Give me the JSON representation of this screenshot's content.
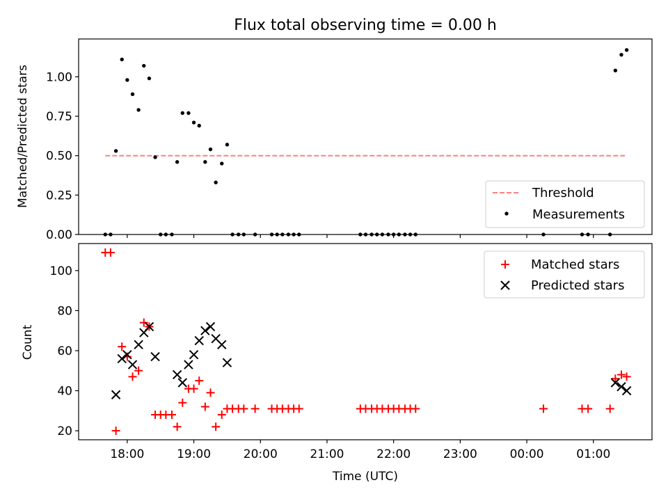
{
  "figure": {
    "title": "Flux total observing time = 0.00 h"
  },
  "chart_data": [
    {
      "type": "scatter",
      "panel": "top",
      "title": "Flux total observing time = 0.00 h",
      "xlabel": "",
      "ylabel": "Matched/Predicted stars",
      "x_unit": "hours since 17:00 UTC (ticks printed as clock time)",
      "xlim": [
        0.27,
        8.88
      ],
      "ylim": [
        0.0,
        1.24
      ],
      "xticks": [
        1,
        2,
        3,
        4,
        5,
        6,
        7,
        8
      ],
      "xtick_labels_shown": false,
      "yticks": [
        0.0,
        0.25,
        0.5,
        0.75,
        1.0
      ],
      "ytick_labels": [
        "0.00",
        "0.25",
        "0.50",
        "0.75",
        "1.00"
      ],
      "grid": false,
      "legend_position": "lower right",
      "threshold": {
        "name": "Threshold",
        "color": "#ff7f7f",
        "style": "dashed",
        "x_range": [
          0.67,
          8.5
        ],
        "y": 0.5
      },
      "series": [
        {
          "name": "Measurements",
          "color": "#000000",
          "marker": "dot",
          "points": [
            [
              0.67,
              0.0
            ],
            [
              0.75,
              0.0
            ],
            [
              0.83,
              0.53
            ],
            [
              0.92,
              1.11
            ],
            [
              1.0,
              0.98
            ],
            [
              1.08,
              0.89
            ],
            [
              1.17,
              0.79
            ],
            [
              1.25,
              1.07
            ],
            [
              1.33,
              0.99
            ],
            [
              1.42,
              0.49
            ],
            [
              1.5,
              0.0
            ],
            [
              1.58,
              0.0
            ],
            [
              1.67,
              0.0
            ],
            [
              1.75,
              0.46
            ],
            [
              1.83,
              0.77
            ],
            [
              1.92,
              0.77
            ],
            [
              2.0,
              0.71
            ],
            [
              2.08,
              0.69
            ],
            [
              2.17,
              0.46
            ],
            [
              2.25,
              0.54
            ],
            [
              2.33,
              0.33
            ],
            [
              2.42,
              0.45
            ],
            [
              2.5,
              0.57
            ],
            [
              2.58,
              0.0
            ],
            [
              2.67,
              0.0
            ],
            [
              2.75,
              0.0
            ],
            [
              2.92,
              0.0
            ],
            [
              3.17,
              0.0
            ],
            [
              3.25,
              0.0
            ],
            [
              3.33,
              0.0
            ],
            [
              3.42,
              0.0
            ],
            [
              3.5,
              0.0
            ],
            [
              3.58,
              0.0
            ],
            [
              4.5,
              0.0
            ],
            [
              4.58,
              0.0
            ],
            [
              4.67,
              0.0
            ],
            [
              4.75,
              0.0
            ],
            [
              4.83,
              0.0
            ],
            [
              4.92,
              0.0
            ],
            [
              5.0,
              0.0
            ],
            [
              5.08,
              0.0
            ],
            [
              5.17,
              0.0
            ],
            [
              5.25,
              0.0
            ],
            [
              5.33,
              0.0
            ],
            [
              7.25,
              0.0
            ],
            [
              7.83,
              0.0
            ],
            [
              7.92,
              0.0
            ],
            [
              8.25,
              0.0
            ],
            [
              8.33,
              1.04
            ],
            [
              8.42,
              1.14
            ],
            [
              8.5,
              1.17
            ]
          ]
        }
      ]
    },
    {
      "type": "scatter",
      "panel": "bottom",
      "title": "",
      "xlabel": "Time (UTC)",
      "ylabel": "Count",
      "x_unit": "hours since 17:00 UTC (ticks printed as clock time)",
      "xlim": [
        0.27,
        8.88
      ],
      "ylim": [
        15.5,
        113.5
      ],
      "xticks": [
        1,
        2,
        3,
        4,
        5,
        6,
        7,
        8
      ],
      "xtick_labels": [
        "18:00",
        "19:00",
        "20:00",
        "21:00",
        "22:00",
        "23:00",
        "00:00",
        "01:00"
      ],
      "yticks": [
        20,
        40,
        60,
        80,
        100
      ],
      "ytick_labels": [
        "20",
        "40",
        "60",
        "80",
        "100"
      ],
      "grid": false,
      "legend_position": "upper right",
      "series": [
        {
          "name": "Matched stars",
          "color": "#ff0000",
          "marker": "plus",
          "points": [
            [
              0.67,
              109
            ],
            [
              0.75,
              109
            ],
            [
              0.83,
              20
            ],
            [
              0.92,
              62
            ],
            [
              1.0,
              57
            ],
            [
              1.08,
              47
            ],
            [
              1.17,
              50
            ],
            [
              1.25,
              74
            ],
            [
              1.33,
              72
            ],
            [
              1.42,
              28
            ],
            [
              1.5,
              28
            ],
            [
              1.58,
              28
            ],
            [
              1.67,
              28
            ],
            [
              1.75,
              22
            ],
            [
              1.83,
              34
            ],
            [
              1.92,
              41
            ],
            [
              2.0,
              41
            ],
            [
              2.08,
              45
            ],
            [
              2.17,
              32
            ],
            [
              2.25,
              39
            ],
            [
              2.33,
              22
            ],
            [
              2.42,
              28
            ],
            [
              2.5,
              31
            ],
            [
              2.58,
              31
            ],
            [
              2.67,
              31
            ],
            [
              2.75,
              31
            ],
            [
              2.92,
              31
            ],
            [
              3.17,
              31
            ],
            [
              3.25,
              31
            ],
            [
              3.33,
              31
            ],
            [
              3.42,
              31
            ],
            [
              3.5,
              31
            ],
            [
              3.58,
              31
            ],
            [
              4.5,
              31
            ],
            [
              4.58,
              31
            ],
            [
              4.67,
              31
            ],
            [
              4.75,
              31
            ],
            [
              4.83,
              31
            ],
            [
              4.92,
              31
            ],
            [
              5.0,
              31
            ],
            [
              5.08,
              31
            ],
            [
              5.17,
              31
            ],
            [
              5.25,
              31
            ],
            [
              5.33,
              31
            ],
            [
              7.25,
              31
            ],
            [
              7.83,
              31
            ],
            [
              7.92,
              31
            ],
            [
              8.25,
              31
            ],
            [
              8.33,
              46
            ],
            [
              8.42,
              48
            ],
            [
              8.5,
              47
            ]
          ]
        },
        {
          "name": "Predicted stars",
          "color": "#000000",
          "marker": "x",
          "points": [
            [
              0.83,
              38
            ],
            [
              0.92,
              56
            ],
            [
              1.0,
              58
            ],
            [
              1.08,
              53
            ],
            [
              1.17,
              63
            ],
            [
              1.25,
              69
            ],
            [
              1.33,
              72
            ],
            [
              1.42,
              57
            ],
            [
              1.75,
              48
            ],
            [
              1.83,
              44
            ],
            [
              1.92,
              53
            ],
            [
              2.0,
              58
            ],
            [
              2.08,
              65
            ],
            [
              2.17,
              70
            ],
            [
              2.25,
              72
            ],
            [
              2.33,
              66
            ],
            [
              2.42,
              63
            ],
            [
              2.5,
              54
            ],
            [
              8.33,
              44
            ],
            [
              8.42,
              42
            ],
            [
              8.5,
              40
            ]
          ]
        }
      ]
    }
  ]
}
